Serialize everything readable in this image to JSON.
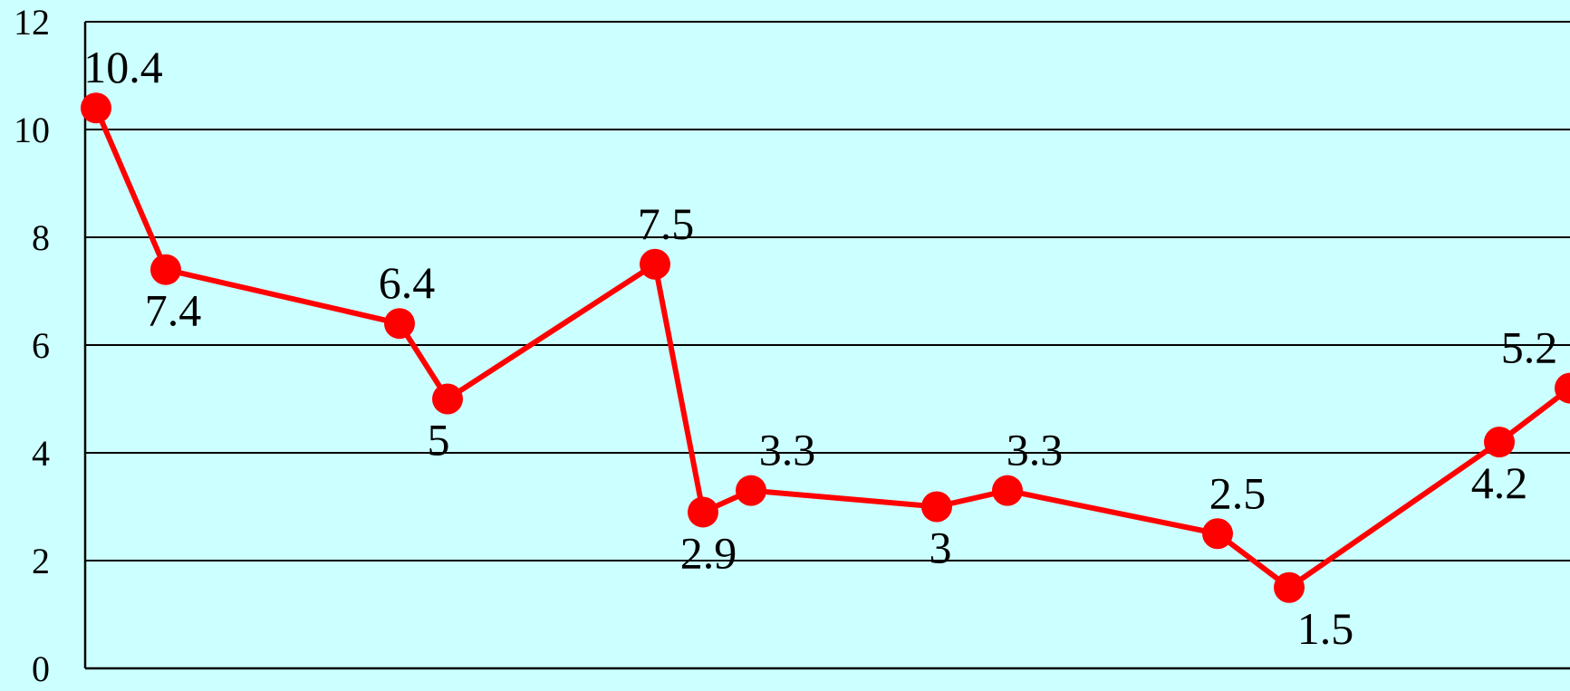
{
  "chart_data": {
    "type": "line",
    "title": "",
    "xlabel": "",
    "ylabel": "",
    "ylim": [
      0,
      12
    ],
    "y_ticks": [
      "0",
      "2",
      "4",
      "6",
      "8",
      "10",
      "12"
    ],
    "grid": true,
    "legend": "none",
    "colors": {
      "background": "#ccffff",
      "line": "#ff0000",
      "marker": "#ff0000",
      "grid": "#000000"
    },
    "series": [
      {
        "values": [
          10.4,
          7.4,
          6.4,
          5,
          7.5,
          2.9,
          3.3,
          3,
          3.3,
          2.5,
          1.5,
          4.2,
          5.2
        ],
        "labels": [
          "10.4",
          "7.4",
          "6.4",
          "5",
          "7.5",
          "2.9",
          "3.3",
          "3",
          "3.3",
          "2.5",
          "1.5",
          "4.2",
          "5.2"
        ]
      }
    ]
  }
}
